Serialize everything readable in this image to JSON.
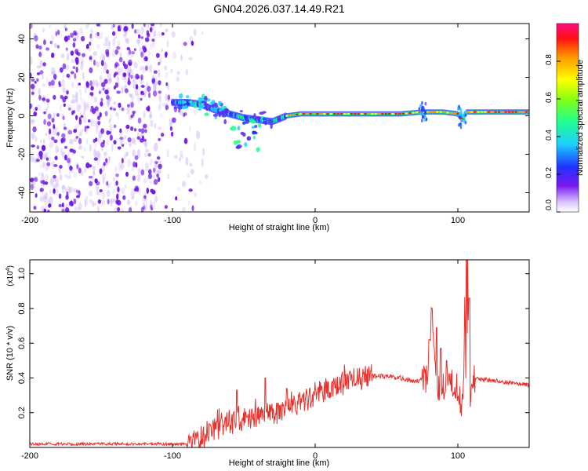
{
  "title": "GN04.2026.037.14.49.R21",
  "colors": {
    "trace": "#e8302c",
    "scatter": "#6f17e6",
    "frame": "#000000"
  },
  "chart_data": [
    {
      "type": "heatmap",
      "title": "GN04.2026.037.14.49.R21",
      "xlabel": "Height of straight line (km)",
      "ylabel": "Frequency (Hz)",
      "xlim": [
        -200,
        150
      ],
      "ylim": [
        -50,
        48
      ],
      "xticks": [
        -200,
        -100,
        0,
        100
      ],
      "yticks": [
        -40,
        -20,
        0,
        20,
        40
      ],
      "colorbar": {
        "label": "Normalized spectral amplitude",
        "range": [
          0,
          1
        ],
        "ticks": [
          "0.0",
          "0.2",
          "0.4",
          "0.6",
          "0.8"
        ],
        "colormap": "rainbow"
      },
      "ridge": {
        "x": [
          -115,
          -100,
          -90,
          -80,
          -70,
          -60,
          -50,
          -40,
          -30,
          -20,
          -10,
          0,
          20,
          40,
          60,
          75,
          90,
          100,
          103,
          106,
          120,
          150
        ],
        "y": [
          7,
          7,
          7,
          6,
          3,
          1,
          -1,
          -2,
          -3,
          0,
          1,
          1,
          1,
          1,
          1,
          2,
          2,
          1,
          -2,
          2,
          2,
          2
        ]
      },
      "noise_region_x": [
        -200,
        -83
      ]
    },
    {
      "type": "line",
      "xlabel": "Height of straight line (km)",
      "ylabel": "SNR (10 * v/v)",
      "scale_label": "(x10",
      "scale_exp": "4",
      "xlim": [
        -200,
        150
      ],
      "ylim": [
        0,
        1.08
      ],
      "xticks": [
        -200,
        -100,
        0,
        100
      ],
      "yticks": [
        0.2,
        0.4,
        0.6,
        0.8,
        1.0
      ],
      "ytick_labels": [
        "0.2",
        "0.4",
        "0.6",
        "0.8",
        "1.0"
      ],
      "series": [
        {
          "name": "SNR",
          "x": [
            -200,
            -90,
            -80,
            -70,
            -60,
            -50,
            -40,
            -30,
            -20,
            -10,
            0,
            10,
            20,
            30,
            40,
            50,
            60,
            70,
            78,
            80,
            82,
            85,
            90,
            95,
            100,
            103,
            104,
            105,
            106,
            107,
            108,
            110,
            120,
            150
          ],
          "y": [
            0.02,
            0.02,
            0.05,
            0.11,
            0.16,
            0.15,
            0.18,
            0.2,
            0.23,
            0.26,
            0.3,
            0.33,
            0.37,
            0.4,
            0.41,
            0.41,
            0.4,
            0.38,
            0.4,
            0.55,
            0.79,
            0.35,
            0.36,
            0.37,
            0.33,
            0.2,
            0.4,
            0.92,
            0.05,
            1.08,
            0.2,
            0.4,
            0.39,
            0.36
          ],
          "peaks": [
            {
              "x": -55,
              "y": 0.33
            },
            {
              "x": -42,
              "y": 0.28
            },
            {
              "x": -35,
              "y": 0.4
            },
            {
              "x": -20,
              "y": 0.34
            },
            {
              "x": 80,
              "y": 0.62
            },
            {
              "x": 82,
              "y": 0.8
            },
            {
              "x": 85,
              "y": 0.69
            },
            {
              "x": 88,
              "y": 0.57
            },
            {
              "x": 92,
              "y": 0.5
            },
            {
              "x": 106,
              "y": 1.08
            },
            {
              "x": 108,
              "y": 0.86
            }
          ]
        }
      ]
    }
  ]
}
